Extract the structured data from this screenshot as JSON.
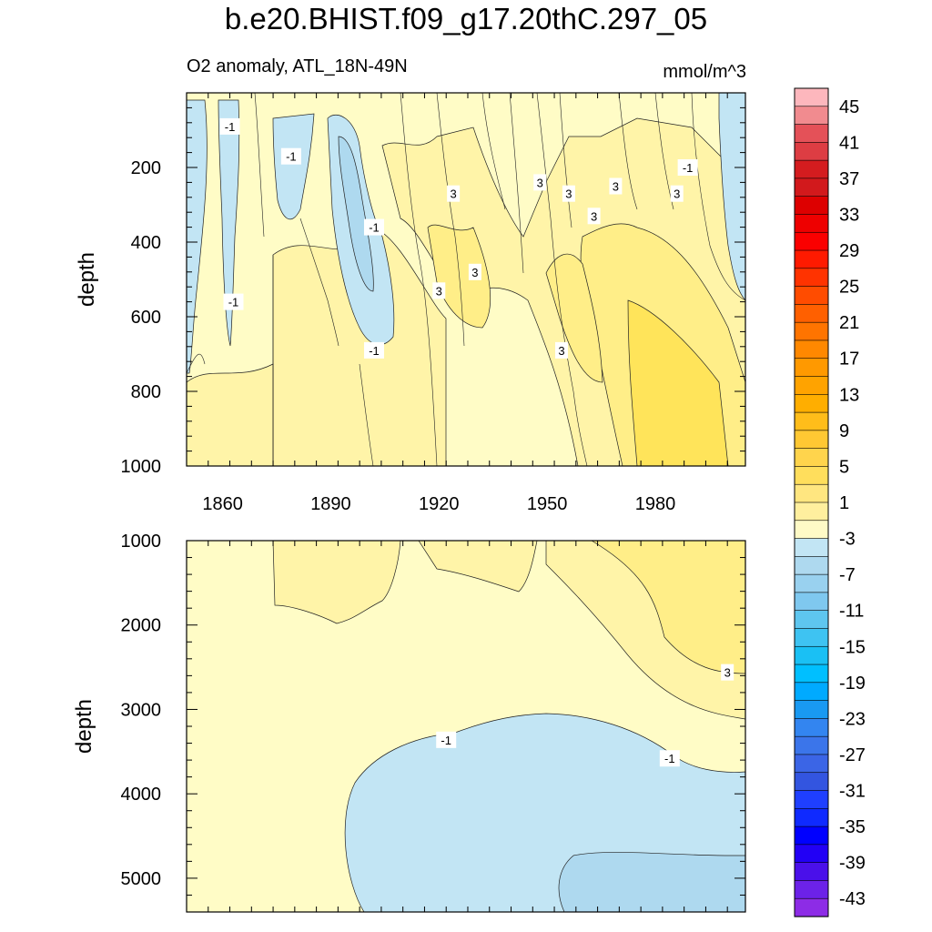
{
  "figure": {
    "title": "b.e20.BHIST.f09_g17.20thC.297_05",
    "subtitle_left": "O2 anomaly, ATL_18N-49N",
    "subtitle_right": "mmol/m^3"
  },
  "chart_data": [
    {
      "type": "contour",
      "panel": "upper",
      "ylabel": "depth",
      "xlabel": "",
      "xlim": [
        1850,
        2005
      ],
      "ylim": [
        1000,
        0
      ],
      "xticks": [
        1860,
        1890,
        1920,
        1950,
        1980
      ],
      "yticks": [
        200,
        400,
        600,
        800,
        1000
      ],
      "contour_labels": [
        {
          "text": "-1",
          "x": 1862,
          "y": 90
        },
        {
          "text": "-1",
          "x": 1879,
          "y": 170
        },
        {
          "text": "-1",
          "x": 1902,
          "y": 360
        },
        {
          "text": "-1",
          "x": 1863,
          "y": 560
        },
        {
          "text": "-1",
          "x": 1902,
          "y": 690
        },
        {
          "text": "-1",
          "x": 1989,
          "y": 200
        },
        {
          "text": "3",
          "x": 1924,
          "y": 270
        },
        {
          "text": "3",
          "x": 1948,
          "y": 240
        },
        {
          "text": "3",
          "x": 1956,
          "y": 270
        },
        {
          "text": "3",
          "x": 1963,
          "y": 330
        },
        {
          "text": "3",
          "x": 1969,
          "y": 250
        },
        {
          "text": "3",
          "x": 1986,
          "y": 270
        },
        {
          "text": "3",
          "x": 1930,
          "y": 480
        },
        {
          "text": "3",
          "x": 1920,
          "y": 530
        },
        {
          "text": "3",
          "x": 1954,
          "y": 690
        }
      ]
    },
    {
      "type": "contour",
      "panel": "lower",
      "ylabel": "depth",
      "xlabel": "",
      "xlim": [
        1850,
        2005
      ],
      "ylim": [
        5400,
        1000
      ],
      "yticks": [
        1000,
        2000,
        3000,
        4000,
        5000
      ],
      "contour_labels": [
        {
          "text": "3",
          "x": 2000,
          "y": 2560
        },
        {
          "text": "-1",
          "x": 1922,
          "y": 3360
        },
        {
          "text": "-1",
          "x": 1984,
          "y": 3580
        }
      ]
    }
  ],
  "colorbar": {
    "label_values": [
      "45",
      "41",
      "37",
      "33",
      "29",
      "25",
      "21",
      "17",
      "13",
      "9",
      "5",
      "1",
      "-3",
      "-7",
      "-11",
      "-15",
      "-19",
      "-23",
      "-27",
      "-31",
      "-35",
      "-39",
      "-43"
    ],
    "colors_top_to_bottom": [
      "#fdb7bd",
      "#f18b8f",
      "#e45158",
      "#dd3d43",
      "#d41c1f",
      "#d2191c",
      "#dd0000",
      "#ee0000",
      "#fa0000",
      "#ff1a00",
      "#ff3300",
      "#ff4c00",
      "#ff6000",
      "#ff7400",
      "#ff8800",
      "#ff9900",
      "#ffa300",
      "#ffae00",
      "#ffbd1a",
      "#ffc833",
      "#ffd44c",
      "#ffde5c",
      "#ffe680",
      "#ffef9e",
      "#fffac6",
      "#c2e5f4",
      "#aed9ef",
      "#99d1ef",
      "#7fc8ef",
      "#5ec6ef",
      "#3ec3f2",
      "#1ac0f4",
      "#00bfff",
      "#00aaff",
      "#1999f2",
      "#3385f0",
      "#3b75ea",
      "#3b65e6",
      "#3355e0",
      "#1f3fff",
      "#0f2aff",
      "#0000ff",
      "#2200f5",
      "#4a10ea",
      "#6c22e8",
      "#8d2ce6"
    ]
  },
  "palette": {
    "bg_positive": "#fffcc6",
    "level_3": "#fff4a8",
    "level_5": "#ffee88",
    "level_7": "#ffe45a",
    "neg_1": "#c2e5f4",
    "neg_3": "#aed9ef",
    "neg_5": "#99d1ef"
  }
}
